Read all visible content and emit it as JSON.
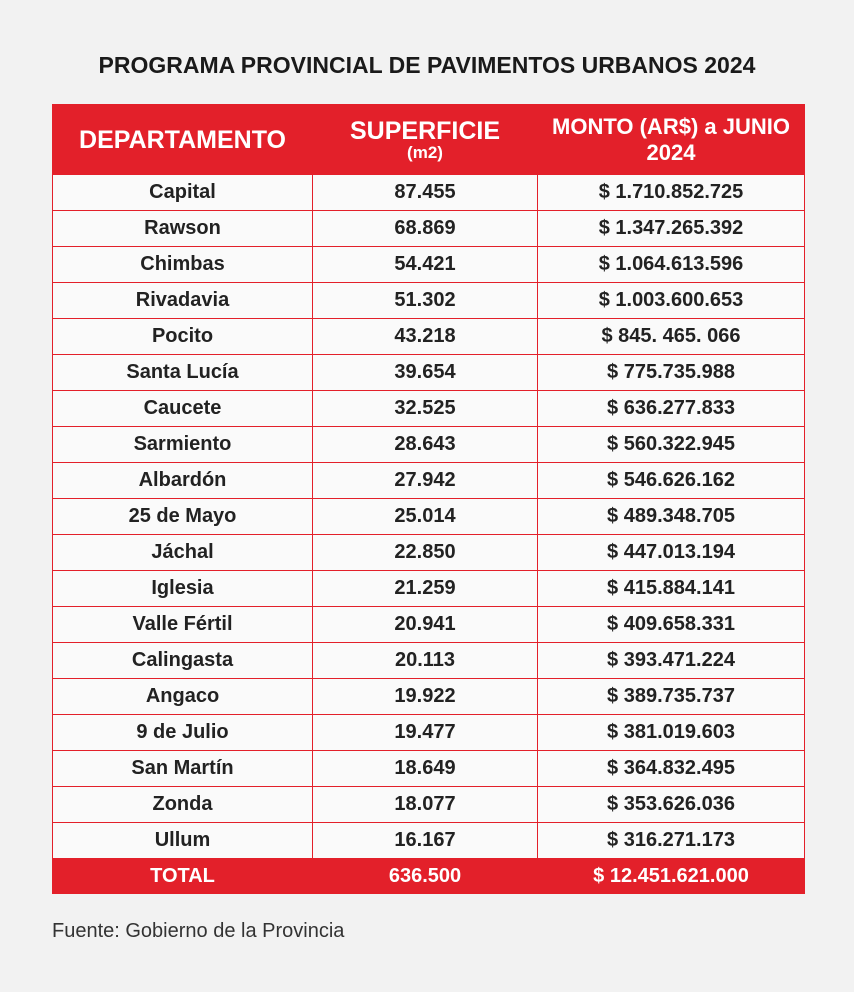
{
  "title": "PROGRAMA PROVINCIAL DE PAVIMENTOS URBANOS 2024",
  "table": {
    "columns": [
      "DEPARTAMENTO",
      {
        "main": "SUPERFICIE",
        "sub": "(m2)"
      },
      "MONTO (AR$) a JUNIO 2024"
    ],
    "rows": [
      [
        "Capital",
        "87.455",
        "$ 1.710.852.725"
      ],
      [
        "Rawson",
        "68.869",
        "$ 1.347.265.392"
      ],
      [
        "Chimbas",
        "54.421",
        "$ 1.064.613.596"
      ],
      [
        "Rivadavia",
        "51.302",
        "$ 1.003.600.653"
      ],
      [
        "Pocito",
        "43.218",
        "$ 845. 465. 066"
      ],
      [
        "Santa Lucía",
        "39.654",
        "$ 775.735.988"
      ],
      [
        "Caucete",
        "32.525",
        "$ 636.277.833"
      ],
      [
        "Sarmiento",
        "28.643",
        "$ 560.322.945"
      ],
      [
        "Albardón",
        "27.942",
        "$ 546.626.162"
      ],
      [
        "25 de Mayo",
        "25.014",
        "$ 489.348.705"
      ],
      [
        "Jáchal",
        "22.850",
        "$ 447.013.194"
      ],
      [
        "Iglesia",
        "21.259",
        "$ 415.884.141"
      ],
      [
        "Valle Fértil",
        "20.941",
        "$ 409.658.331"
      ],
      [
        "Calingasta",
        "20.113",
        "$ 393.471.224"
      ],
      [
        "Angaco",
        "19.922",
        "$ 389.735.737"
      ],
      [
        "9 de Julio",
        "19.477",
        "$ 381.019.603"
      ],
      [
        "San Martín",
        "18.649",
        "$ 364.832.495"
      ],
      [
        "Zonda",
        "18.077",
        "$ 353.626.036"
      ],
      [
        "Ullum",
        "16.167",
        "$ 316.271.173"
      ]
    ],
    "total": [
      "TOTAL",
      "636.500",
      "$ 12.451.621.000"
    ]
  },
  "source": "Fuente: Gobierno de la Provincia"
}
